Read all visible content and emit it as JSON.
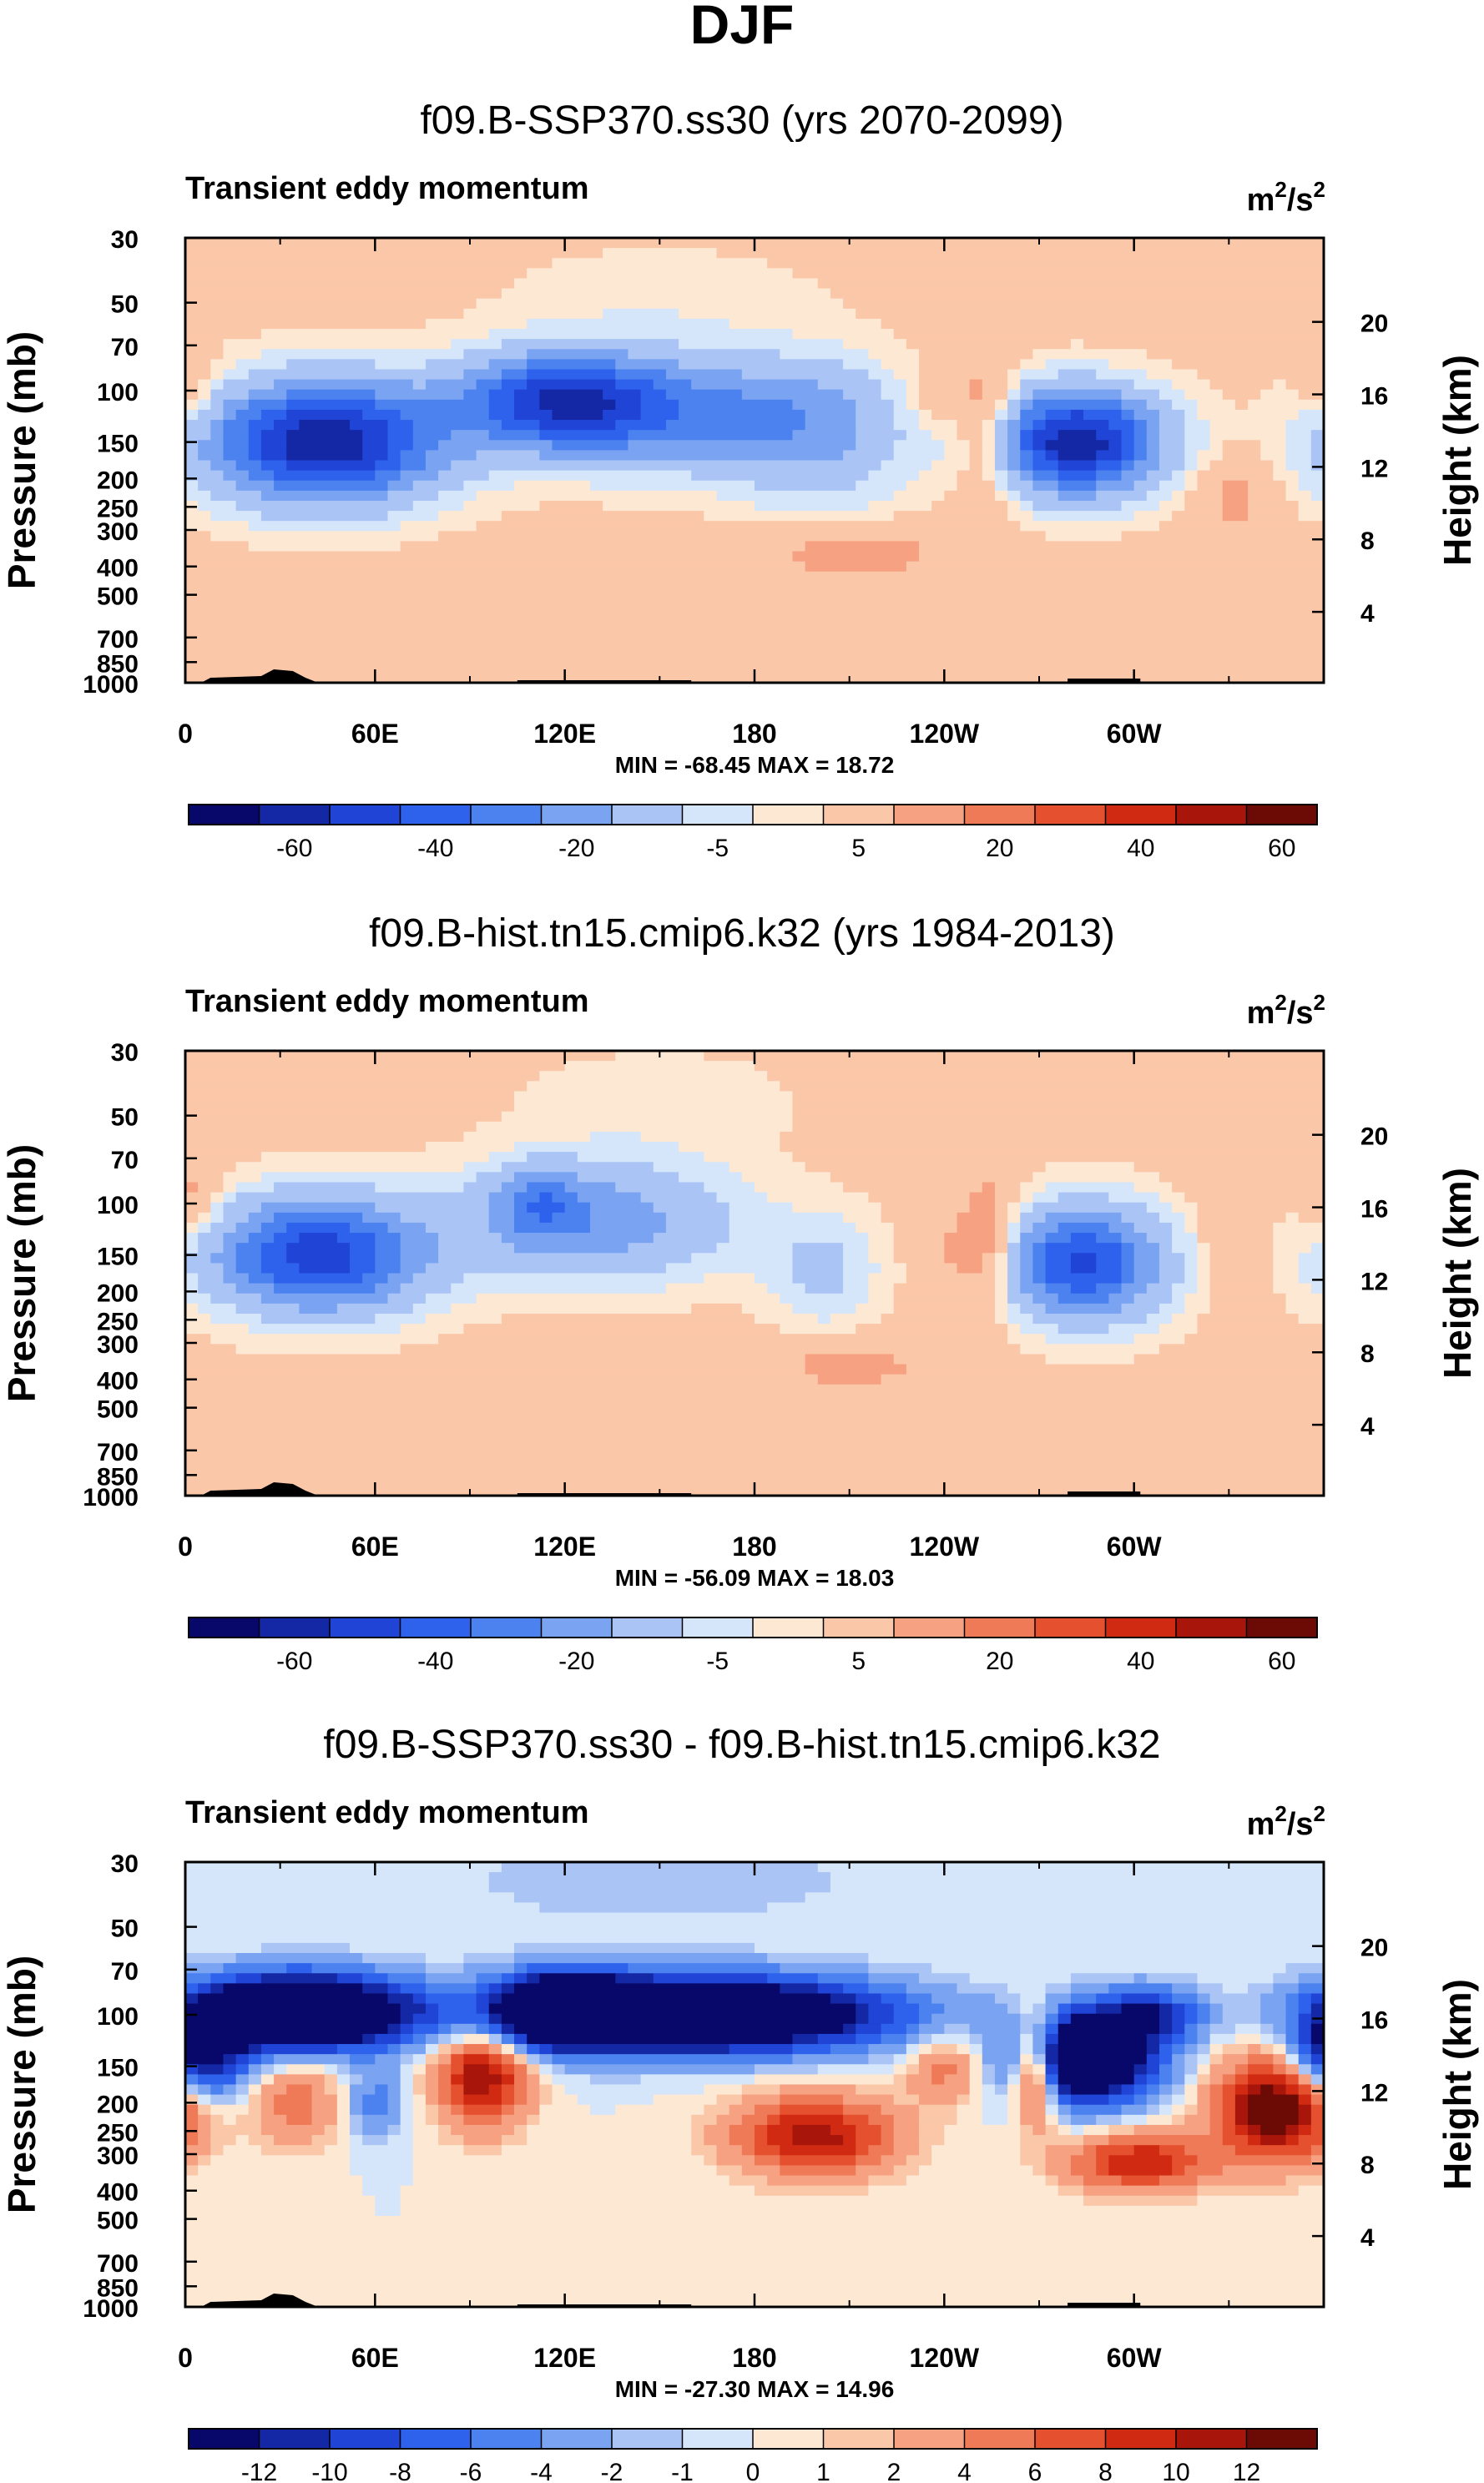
{
  "page_title": "DJF",
  "chart_data": [
    {
      "type": "heatmap",
      "title": "f09.B-SSP370.ss30 (yrs 2070-2099)",
      "subtitle": "Transient eddy momentum",
      "units": "m²/s²",
      "units_base": "m",
      "units_exp1": "2",
      "units_mid": "/s",
      "units_exp2": "2",
      "ylabel": "Pressure (mb)",
      "y2label": "Height (km)",
      "xticks": [
        "0",
        "60E",
        "120E",
        "180",
        "120W",
        "60W"
      ],
      "xlim": [
        0,
        360
      ],
      "yticks_pressure": [
        "30",
        "50",
        "70",
        "100",
        "150",
        "200",
        "250",
        "300",
        "400",
        "500",
        "700",
        "850",
        "1000"
      ],
      "ylim_pressure": [
        30,
        1000
      ],
      "yticks_height": [
        "20",
        "16",
        "12",
        "8",
        "4"
      ],
      "stats_text": "MIN = -68.45   MAX =  18.72",
      "min": -68.45,
      "max": 18.72,
      "colorbar": {
        "labels": [
          "-60",
          "-40",
          "-20",
          "-5",
          "5",
          "20",
          "40",
          "60"
        ],
        "colors": [
          "#08086b",
          "#1427a4",
          "#1f44d6",
          "#2e62ec",
          "#4b82ef",
          "#7aa3f2",
          "#a9c4f5",
          "#d6e6fa",
          "#fde8d4",
          "#fbc7a9",
          "#f6a181",
          "#ef7a58",
          "#e5502f",
          "#d02a12",
          "#a8150a",
          "#6c0a06"
        ]
      },
      "blobs": [
        {
          "lon": 44,
          "p": 150,
          "amp": -68.5,
          "wlon": 25,
          "wlp": 0.32
        },
        {
          "lon": 118,
          "p": 108,
          "amp": -48,
          "wlon": 22,
          "wlp": 0.25
        },
        {
          "lon": 158,
          "p": 120,
          "amp": -30,
          "wlon": 38,
          "wlp": 0.3
        },
        {
          "lon": 200,
          "p": 150,
          "amp": -14,
          "wlon": 20,
          "wlp": 0.4
        },
        {
          "lon": 282,
          "p": 150,
          "amp": -67,
          "wlon": 18,
          "wlp": 0.28
        },
        {
          "lon": 150,
          "p": 50,
          "amp": -4,
          "wlon": 35,
          "wlp": 0.3
        },
        {
          "lon": 254,
          "p": 140,
          "amp": 17,
          "wlon": 7,
          "wlp": 0.38
        },
        {
          "lon": 210,
          "p": 360,
          "amp": 9,
          "wlon": 22,
          "wlp": 0.15
        },
        {
          "lon": 332,
          "p": 230,
          "amp": 8,
          "wlon": 8,
          "wlp": 0.22
        },
        {
          "lon": 2,
          "p": 100,
          "amp": 8,
          "wlon": 6,
          "wlp": 0.2
        },
        {
          "lon": 236,
          "p": 110,
          "amp": 6,
          "wlon": 10,
          "wlp": 0.2
        }
      ]
    },
    {
      "type": "heatmap",
      "title": "f09.B-hist.tn15.cmip6.k32 (yrs 1984-2013)",
      "subtitle": "Transient eddy momentum",
      "units": "m²/s²",
      "units_base": "m",
      "units_exp1": "2",
      "units_mid": "/s",
      "units_exp2": "2",
      "ylabel": "Pressure (mb)",
      "y2label": "Height (km)",
      "xticks": [
        "0",
        "60E",
        "120E",
        "180",
        "120W",
        "60W"
      ],
      "xlim": [
        0,
        360
      ],
      "yticks_pressure": [
        "30",
        "50",
        "70",
        "100",
        "150",
        "200",
        "250",
        "300",
        "400",
        "500",
        "700",
        "850",
        "1000"
      ],
      "ylim_pressure": [
        30,
        1000
      ],
      "yticks_height": [
        "20",
        "16",
        "12",
        "8",
        "4"
      ],
      "stats_text": "MIN = -56.09   MAX =  18.03",
      "min": -56.09,
      "max": 18.03,
      "colorbar": {
        "labels": [
          "-60",
          "-40",
          "-20",
          "-5",
          "5",
          "20",
          "40",
          "60"
        ],
        "colors": [
          "#08086b",
          "#1427a4",
          "#1f44d6",
          "#2e62ec",
          "#4b82ef",
          "#7aa3f2",
          "#a9c4f5",
          "#d6e6fa",
          "#fde8d4",
          "#fbc7a9",
          "#f6a181",
          "#ef7a58",
          "#e5502f",
          "#d02a12",
          "#a8150a",
          "#6c0a06"
        ]
      },
      "blobs": [
        {
          "lon": 42,
          "p": 150,
          "amp": -56,
          "wlon": 23,
          "wlp": 0.3
        },
        {
          "lon": 130,
          "p": 115,
          "amp": -26,
          "wlon": 30,
          "wlp": 0.32
        },
        {
          "lon": 112,
          "p": 100,
          "amp": -22,
          "wlon": 10,
          "wlp": 0.2
        },
        {
          "lon": 202,
          "p": 170,
          "amp": -12,
          "wlon": 12,
          "wlp": 0.3
        },
        {
          "lon": 284,
          "p": 160,
          "amp": -52,
          "wlon": 17,
          "wlp": 0.3
        },
        {
          "lon": 150,
          "p": 45,
          "amp": -3.5,
          "wlon": 32,
          "wlp": 0.3
        },
        {
          "lon": 254,
          "p": 140,
          "amp": 16,
          "wlon": 7,
          "wlp": 0.35
        },
        {
          "lon": 210,
          "p": 360,
          "amp": 8,
          "wlon": 18,
          "wlp": 0.15
        },
        {
          "lon": 2,
          "p": 100,
          "amp": 9,
          "wlon": 6,
          "wlp": 0.25
        },
        {
          "lon": 240,
          "p": 150,
          "amp": 5,
          "wlon": 6,
          "wlp": 0.2
        },
        {
          "lon": 330,
          "p": 150,
          "amp": 6,
          "wlon": 6,
          "wlp": 0.25
        }
      ]
    },
    {
      "type": "heatmap",
      "title": "f09.B-SSP370.ss30 - f09.B-hist.tn15.cmip6.k32",
      "subtitle": "Transient eddy momentum",
      "units": "m²/s²",
      "units_base": "m",
      "units_exp1": "2",
      "units_mid": "/s",
      "units_exp2": "2",
      "ylabel": "Pressure (mb)",
      "y2label": "Height (km)",
      "xticks": [
        "0",
        "60E",
        "120E",
        "180",
        "120W",
        "60W"
      ],
      "xlim": [
        0,
        360
      ],
      "yticks_pressure": [
        "30",
        "50",
        "70",
        "100",
        "150",
        "200",
        "250",
        "300",
        "400",
        "500",
        "700",
        "850",
        "1000"
      ],
      "ylim_pressure": [
        30,
        1000
      ],
      "yticks_height": [
        "20",
        "16",
        "12",
        "8",
        "4"
      ],
      "stats_text": "MIN = -27.30   MAX =  14.96",
      "min": -27.3,
      "max": 14.96,
      "colorbar": {
        "labels": [
          "-12",
          "-10",
          "-8",
          "-6",
          "-4",
          "-2",
          "-1",
          "0",
          "1",
          "2",
          "4",
          "6",
          "8",
          "10",
          "12"
        ],
        "colors": [
          "#08086b",
          "#1427a4",
          "#1f44d6",
          "#2e62ec",
          "#4b82ef",
          "#7aa3f2",
          "#a9c4f5",
          "#d6e6fa",
          "#fde8d4",
          "#fbc7a9",
          "#f6a181",
          "#ef7a58",
          "#e5502f",
          "#d02a12",
          "#a8150a",
          "#6c0a06"
        ]
      },
      "blobs": [
        {
          "lon": 35,
          "p": 98,
          "amp": -27,
          "wlon": 24,
          "wlp": 0.2
        },
        {
          "lon": 5,
          "p": 140,
          "amp": -14,
          "wlon": 10,
          "wlp": 0.22
        },
        {
          "lon": 160,
          "p": 100,
          "amp": -26,
          "wlon": 42,
          "wlp": 0.2
        },
        {
          "lon": 120,
          "p": 95,
          "amp": -16,
          "wlon": 14,
          "wlp": 0.2
        },
        {
          "lon": 285,
          "p": 140,
          "amp": -24,
          "wlon": 15,
          "wlp": 0.24
        },
        {
          "lon": 305,
          "p": 100,
          "amp": -10,
          "wlon": 12,
          "wlp": 0.15
        },
        {
          "lon": 94,
          "p": 160,
          "amp": 12,
          "wlon": 10,
          "wlp": 0.28
        },
        {
          "lon": 199,
          "p": 260,
          "amp": 11,
          "wlon": 18,
          "wlp": 0.22
        },
        {
          "lon": 269,
          "p": 150,
          "amp": 14,
          "wlon": 5,
          "wlp": 0.28
        },
        {
          "lon": 345,
          "p": 210,
          "amp": 15,
          "wlon": 13,
          "wlp": 0.28
        },
        {
          "lon": 302,
          "p": 320,
          "amp": 10,
          "wlon": 16,
          "wlp": 0.16
        },
        {
          "lon": 35,
          "p": 200,
          "amp": 5,
          "wlon": 10,
          "wlp": 0.25
        },
        {
          "lon": 240,
          "p": 150,
          "amp": 5,
          "wlon": 8,
          "wlp": 0.2
        },
        {
          "lon": 150,
          "p": 35,
          "amp": -1.5,
          "wlon": 60,
          "wlp": 0.3
        },
        {
          "lon": 60,
          "p": 200,
          "amp": -5,
          "wlon": 6,
          "wlp": 0.2
        }
      ]
    }
  ]
}
